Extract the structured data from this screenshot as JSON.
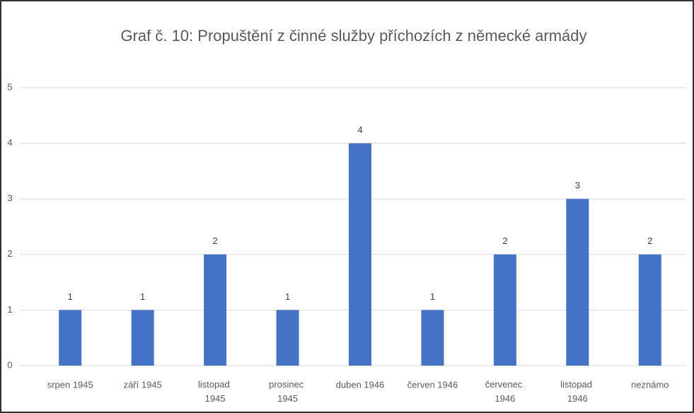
{
  "chart_data": {
    "type": "bar",
    "title": "Graf č. 10: Propuštění z činné služby příchozích z německé armády",
    "categories": [
      "srpen 1945",
      "září 1945",
      "listopad 1945",
      "prosinec 1945",
      "duben 1946",
      "červen 1946",
      "červenec 1946",
      "listopad 1946",
      "neznámo"
    ],
    "values": [
      1,
      1,
      2,
      1,
      4,
      1,
      2,
      3,
      2
    ],
    "color": "#4472c4",
    "ylim": [
      0,
      5
    ],
    "yticks": [
      0,
      1,
      2,
      3,
      4,
      5
    ],
    "grid": true
  }
}
